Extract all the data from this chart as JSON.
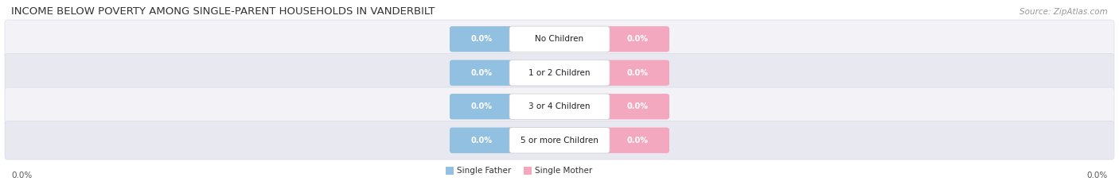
{
  "title": "INCOME BELOW POVERTY AMONG SINGLE-PARENT HOUSEHOLDS IN VANDERBILT",
  "source": "Source: ZipAtlas.com",
  "categories": [
    "No Children",
    "1 or 2 Children",
    "3 or 4 Children",
    "5 or more Children"
  ],
  "single_father_values": [
    0.0,
    0.0,
    0.0,
    0.0
  ],
  "single_mother_values": [
    0.0,
    0.0,
    0.0,
    0.0
  ],
  "father_color": "#92c0e0",
  "mother_color": "#f4a8c0",
  "background_color": "#ffffff",
  "row_color_even": "#f2f2f7",
  "row_color_odd": "#e8e8f0",
  "title_fontsize": 9.5,
  "source_fontsize": 7.5,
  "axis_label_left": "0.0%",
  "axis_label_right": "0.0%"
}
